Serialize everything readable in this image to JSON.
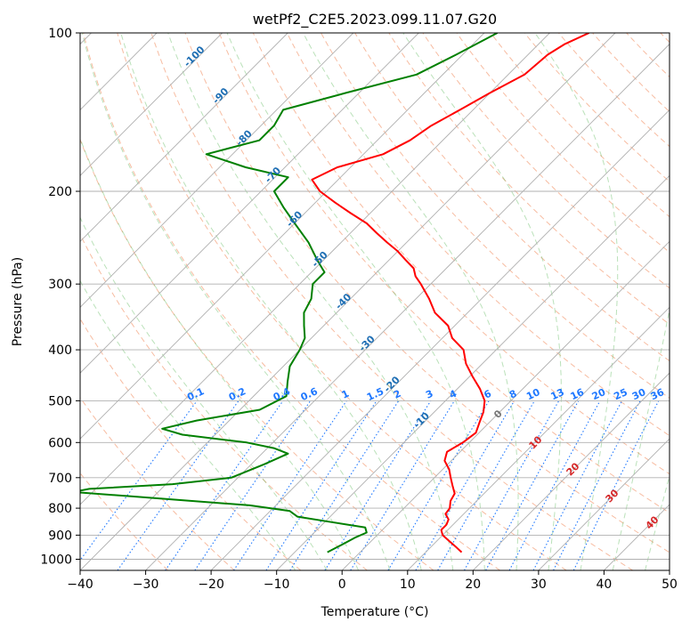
{
  "chart_data": {
    "type": "skewt",
    "title": "wetPf2_C2E5.2023.099.11.07.G20",
    "xlabel": "Temperature (°C)",
    "ylabel": "Pressure (hPa)",
    "xlim": [
      -40,
      50
    ],
    "ylim": [
      1050,
      100
    ],
    "y_scale": "log",
    "grid": true,
    "x_ticks": [
      "−40",
      "−30",
      "−20",
      "−10",
      "0",
      "10",
      "20",
      "30",
      "40",
      "50"
    ],
    "x_tick_values": [
      -40,
      -30,
      -20,
      -10,
      0,
      10,
      20,
      30,
      40,
      50
    ],
    "y_ticks": [
      "100",
      "200",
      "300",
      "400",
      "500",
      "600",
      "700",
      "800",
      "900",
      "1000"
    ],
    "y_tick_values": [
      100,
      200,
      300,
      400,
      500,
      600,
      700,
      800,
      900,
      1000
    ],
    "series": [
      {
        "role": "temperature",
        "color": "#ff0000",
        "points": [
          [
            100,
            -44
          ],
          [
            105,
            -46
          ],
          [
            110,
            -47
          ],
          [
            120,
            -47.5
          ],
          [
            130,
            -50
          ],
          [
            140,
            -52
          ],
          [
            150,
            -54
          ],
          [
            160,
            -55
          ],
          [
            170,
            -57
          ],
          [
            180,
            -62
          ],
          [
            190,
            -64
          ],
          [
            200,
            -61
          ],
          [
            210,
            -57
          ],
          [
            220,
            -53
          ],
          [
            230,
            -49
          ],
          [
            240,
            -46
          ],
          [
            250,
            -43
          ],
          [
            260,
            -40
          ],
          [
            270,
            -37.5
          ],
          [
            280,
            -35
          ],
          [
            290,
            -33.5
          ],
          [
            300,
            -31.5
          ],
          [
            320,
            -28
          ],
          [
            340,
            -25
          ],
          [
            360,
            -21
          ],
          [
            380,
            -18.5
          ],
          [
            400,
            -15
          ],
          [
            425,
            -12.5
          ],
          [
            450,
            -9.5
          ],
          [
            475,
            -6.5
          ],
          [
            500,
            -4
          ],
          [
            525,
            -2.5
          ],
          [
            550,
            -1.5
          ],
          [
            575,
            -0.5
          ],
          [
            600,
            -1
          ],
          [
            625,
            -2
          ],
          [
            650,
            -1
          ],
          [
            675,
            1
          ],
          [
            700,
            2.5
          ],
          [
            725,
            4
          ],
          [
            750,
            5.5
          ],
          [
            775,
            6
          ],
          [
            800,
            7
          ],
          [
            820,
            7.2
          ],
          [
            840,
            8.5
          ],
          [
            860,
            9
          ],
          [
            880,
            9
          ],
          [
            900,
            10
          ],
          [
            925,
            12
          ],
          [
            950,
            14
          ],
          [
            970,
            15.5
          ]
        ]
      },
      {
        "role": "dewpoint",
        "color": "#008000",
        "points": [
          [
            100,
            -58
          ],
          [
            110,
            -61
          ],
          [
            120,
            -64
          ],
          [
            130,
            -72
          ],
          [
            140,
            -79
          ],
          [
            150,
            -78
          ],
          [
            160,
            -78
          ],
          [
            170,
            -84
          ],
          [
            180,
            -76
          ],
          [
            188,
            -68
          ],
          [
            200,
            -68
          ],
          [
            215,
            -64
          ],
          [
            230,
            -60
          ],
          [
            250,
            -55
          ],
          [
            270,
            -51
          ],
          [
            285,
            -48
          ],
          [
            300,
            -48
          ],
          [
            320,
            -46
          ],
          [
            340,
            -45
          ],
          [
            360,
            -43
          ],
          [
            380,
            -41
          ],
          [
            400,
            -40
          ],
          [
            430,
            -39
          ],
          [
            460,
            -37
          ],
          [
            490,
            -35
          ],
          [
            520,
            -37
          ],
          [
            545,
            -45
          ],
          [
            565,
            -49
          ],
          [
            580,
            -45
          ],
          [
            600,
            -34
          ],
          [
            615,
            -29
          ],
          [
            630,
            -26
          ],
          [
            660,
            -28
          ],
          [
            700,
            -31
          ],
          [
            720,
            -39
          ],
          [
            735,
            -51
          ],
          [
            745,
            -53
          ],
          [
            760,
            -43
          ],
          [
            790,
            -24
          ],
          [
            810,
            -17
          ],
          [
            830,
            -15
          ],
          [
            850,
            -9
          ],
          [
            870,
            -3
          ],
          [
            890,
            -2
          ],
          [
            910,
            -3
          ],
          [
            940,
            -4
          ],
          [
            970,
            -5
          ]
        ]
      }
    ],
    "mixing_ratio_labels": [
      "0.1",
      "0.2",
      "0.4",
      "0.6",
      "1",
      "1.5",
      "2",
      "3",
      "4",
      "6",
      "8",
      "10",
      "13",
      "16",
      "20",
      "25",
      "30",
      "36"
    ],
    "moist_adiabat_labels": [
      "-100",
      "-90",
      "-80",
      "-70",
      "-60",
      "-50",
      "-40",
      "-30",
      "-20",
      "-10"
    ],
    "dry_adiabat_labels": [
      "0",
      "10",
      "20",
      "30",
      "40"
    ],
    "colors": {
      "temperature": "#ff0000",
      "dewpoint": "#008000",
      "dry_adiabat": "#f4a582",
      "moist_adiabat": "#66bd63",
      "mixing_ratio": "#1f78ff",
      "moist_label": "#1f6fb4",
      "dry_label": "#d62728",
      "zero_label": "#777777",
      "grid": "#b0b0b0"
    }
  }
}
